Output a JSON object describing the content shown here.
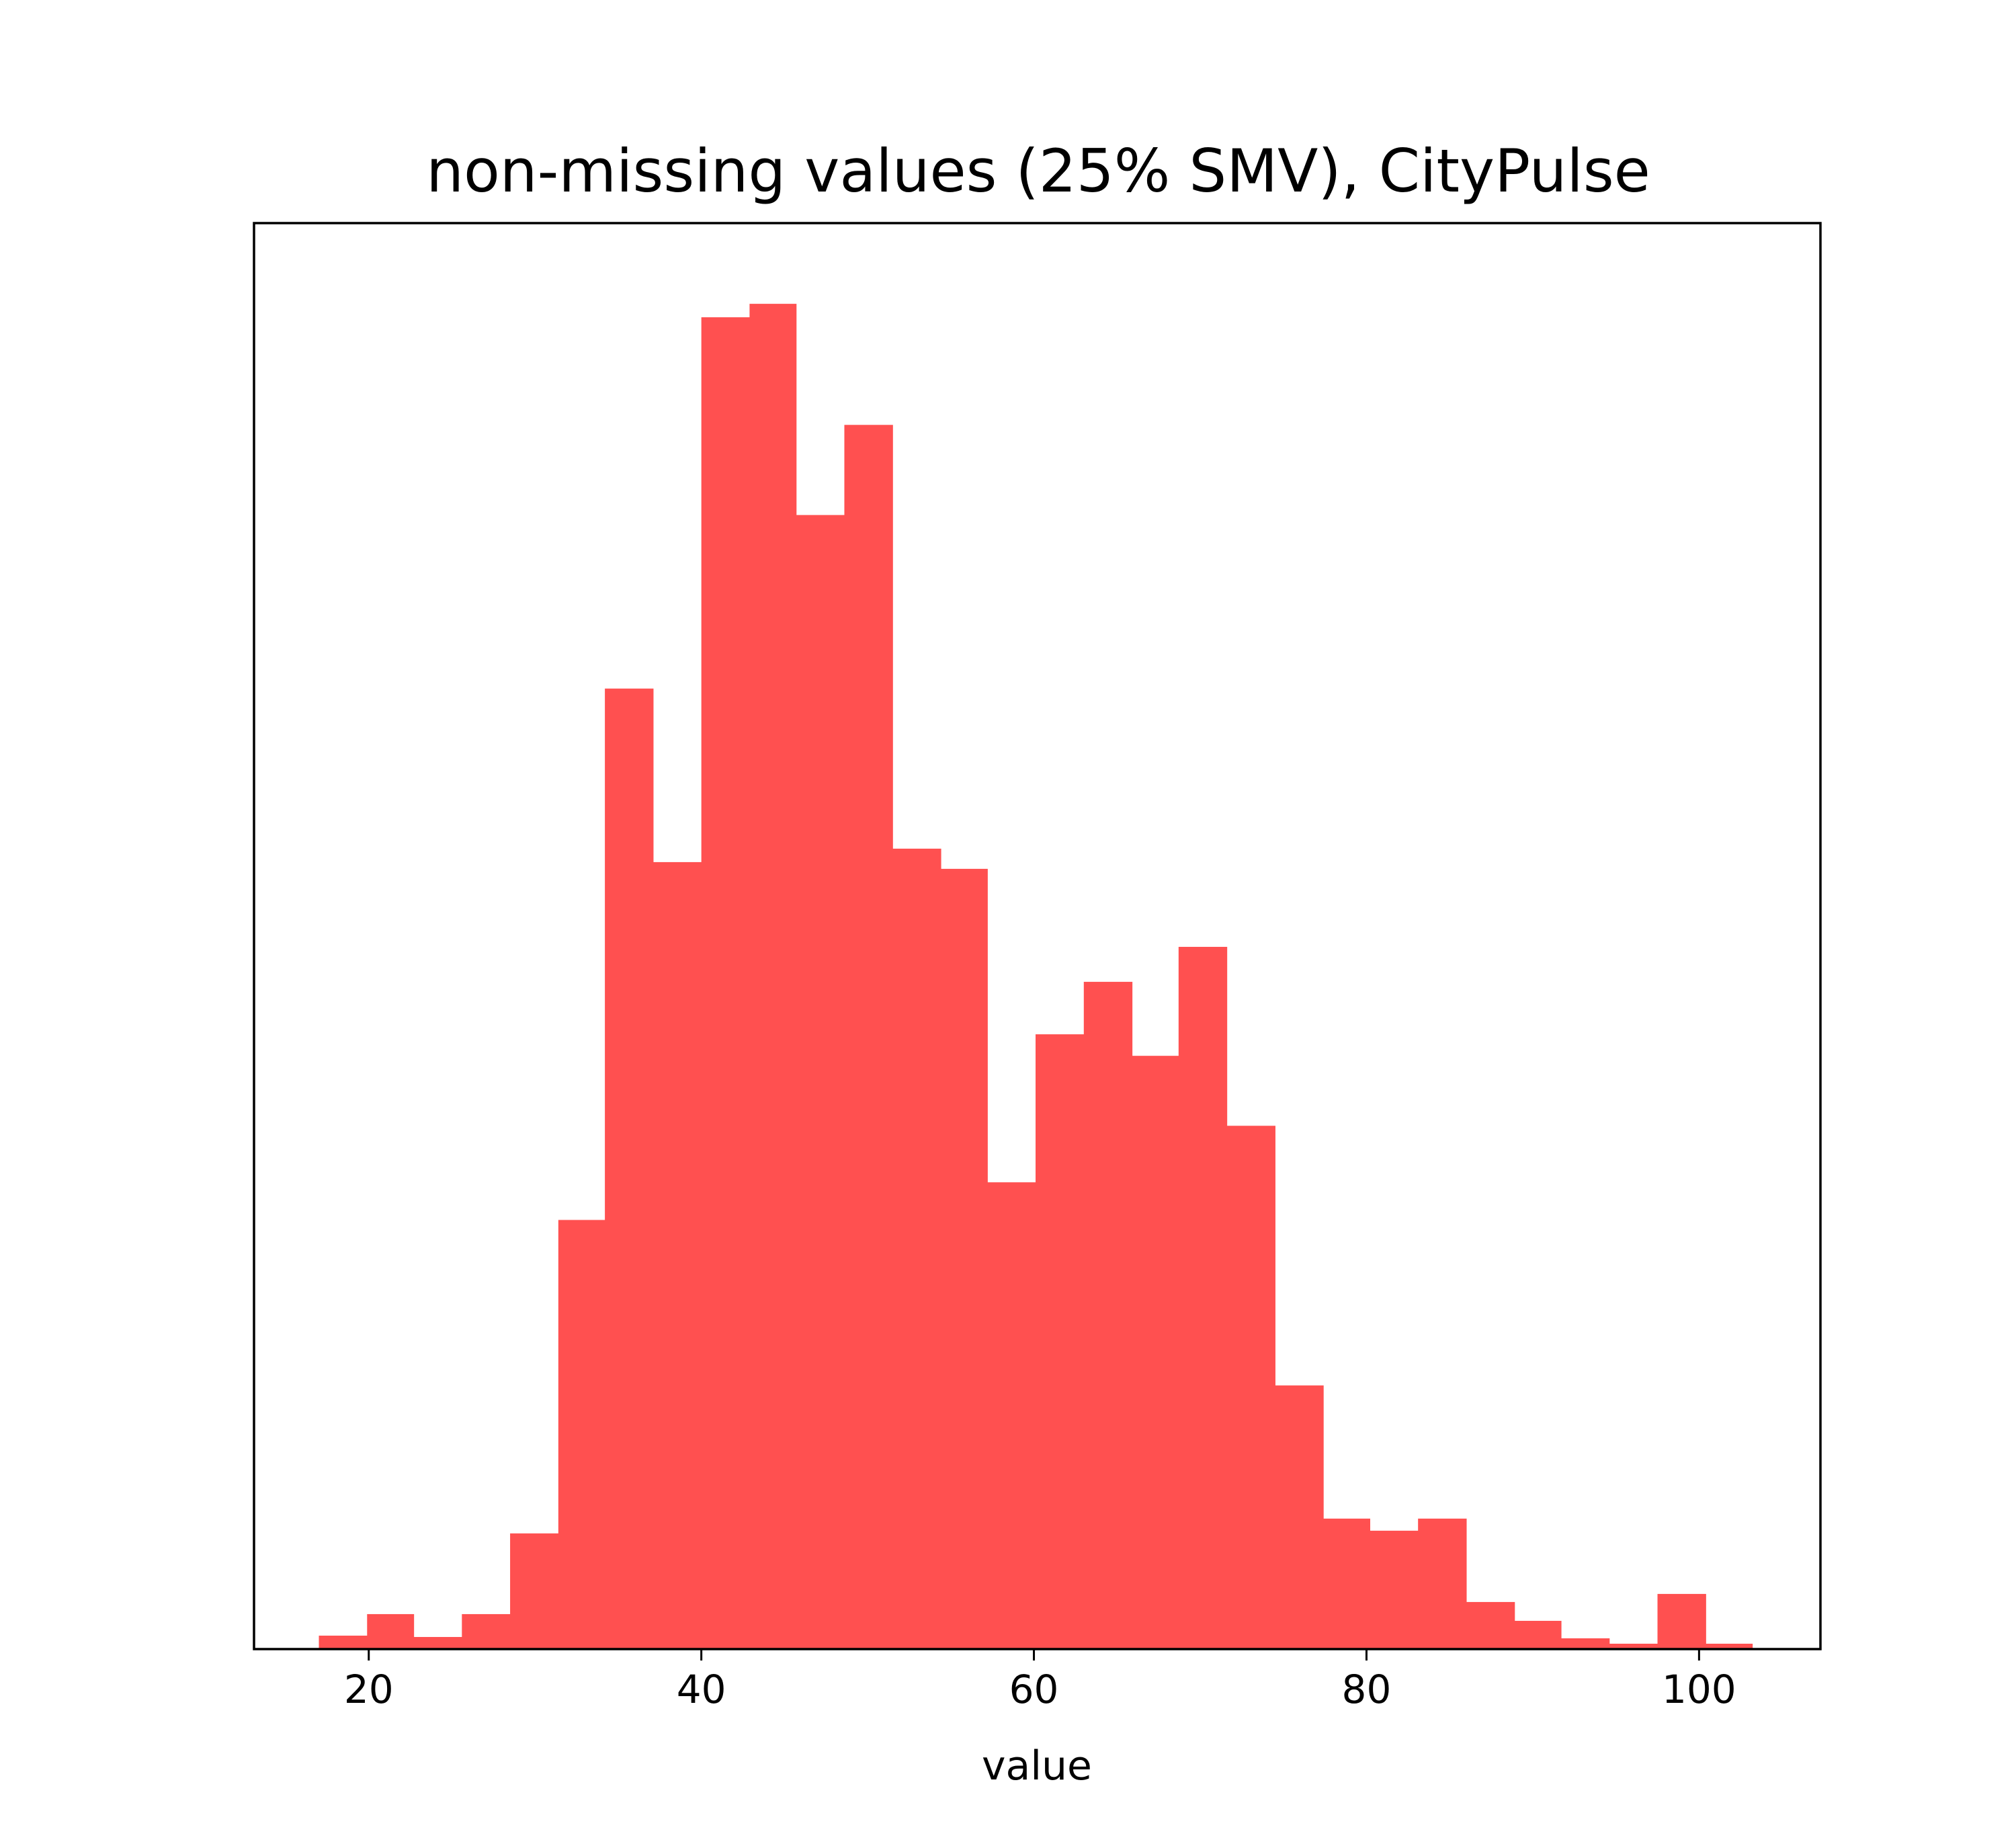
{
  "chart_data": {
    "type": "bar",
    "subtype": "histogram",
    "title": "non-missing values (25% SMV), CityPulse",
    "xlabel": "value",
    "ylabel": "",
    "xlim": [
      13.1,
      107.3
    ],
    "xticks": [
      20,
      40,
      60,
      80,
      100
    ],
    "ylim": [
      0,
      1.06
    ],
    "y_axis_ticks": "none",
    "grid": false,
    "bar_color": "#ff5050",
    "bins": [
      {
        "x0": 17.0,
        "x1": 19.9,
        "count": 0.01
      },
      {
        "x0": 19.9,
        "x1": 22.7,
        "count": 0.026
      },
      {
        "x0": 22.7,
        "x1": 25.6,
        "count": 0.009
      },
      {
        "x0": 25.6,
        "x1": 28.5,
        "count": 0.026
      },
      {
        "x0": 28.5,
        "x1": 31.4,
        "count": 0.086
      },
      {
        "x0": 31.4,
        "x1": 34.2,
        "count": 0.319
      },
      {
        "x0": 34.2,
        "x1": 37.1,
        "count": 0.714
      },
      {
        "x0": 37.1,
        "x1": 40.0,
        "count": 0.585
      },
      {
        "x0": 40.0,
        "x1": 42.9,
        "count": 0.99
      },
      {
        "x0": 42.9,
        "x1": 45.7,
        "count": 1.0
      },
      {
        "x0": 45.7,
        "x1": 48.6,
        "count": 0.843
      },
      {
        "x0": 48.6,
        "x1": 51.5,
        "count": 0.91
      },
      {
        "x0": 51.5,
        "x1": 54.4,
        "count": 0.595
      },
      {
        "x0": 54.4,
        "x1": 57.2,
        "count": 0.58
      },
      {
        "x0": 57.2,
        "x1": 60.1,
        "count": 0.347
      },
      {
        "x0": 60.1,
        "x1": 63.0,
        "count": 0.457
      },
      {
        "x0": 63.0,
        "x1": 65.9,
        "count": 0.496
      },
      {
        "x0": 65.9,
        "x1": 68.7,
        "count": 0.441
      },
      {
        "x0": 68.7,
        "x1": 71.6,
        "count": 0.522
      },
      {
        "x0": 71.6,
        "x1": 74.5,
        "count": 0.389
      },
      {
        "x0": 74.5,
        "x1": 77.4,
        "count": 0.196
      },
      {
        "x0": 77.4,
        "x1": 80.2,
        "count": 0.097
      },
      {
        "x0": 80.2,
        "x1": 83.1,
        "count": 0.088
      },
      {
        "x0": 83.1,
        "x1": 86.0,
        "count": 0.097
      },
      {
        "x0": 86.0,
        "x1": 88.9,
        "count": 0.035
      },
      {
        "x0": 88.9,
        "x1": 91.7,
        "count": 0.021
      },
      {
        "x0": 91.7,
        "x1": 94.6,
        "count": 0.008
      },
      {
        "x0": 94.6,
        "x1": 97.5,
        "count": 0.004
      },
      {
        "x0": 97.5,
        "x1": 100.4,
        "count": 0.041
      },
      {
        "x0": 100.4,
        "x1": 103.2,
        "count": 0.004
      }
    ]
  }
}
